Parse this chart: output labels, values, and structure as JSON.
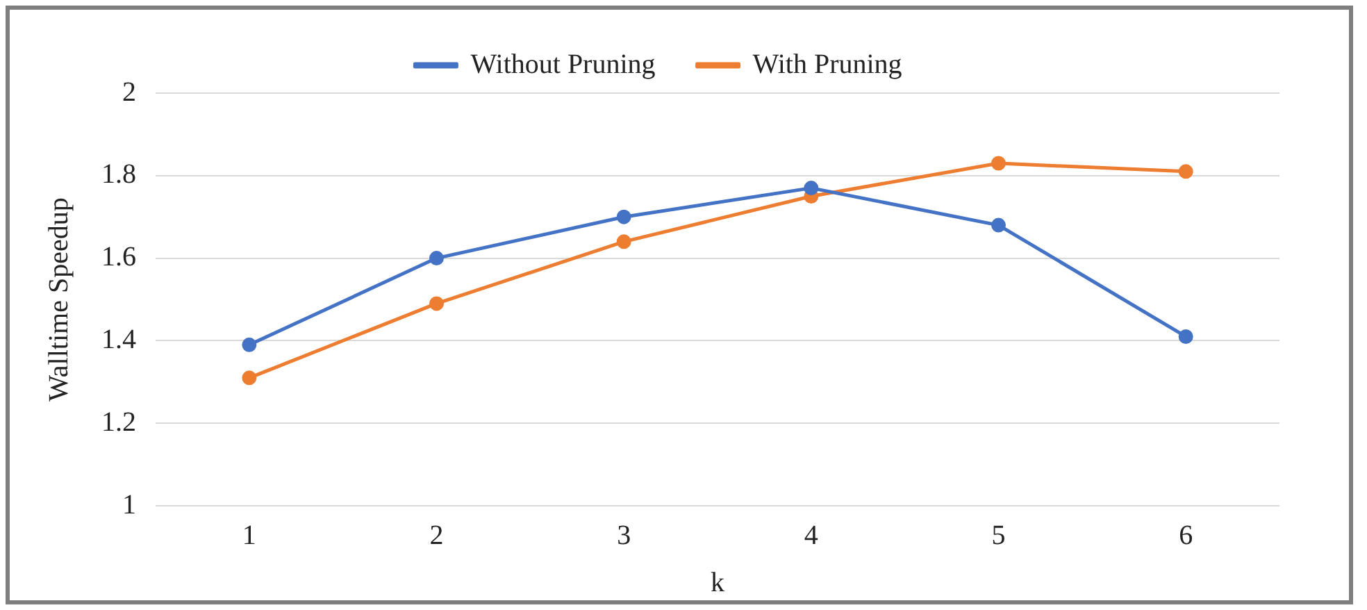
{
  "chart_data": {
    "type": "line",
    "xlabel": "k",
    "ylabel": "Walltime Speedup",
    "categories": [
      "1",
      "2",
      "3",
      "4",
      "5",
      "6"
    ],
    "series": [
      {
        "name": "Without Pruning",
        "color": "#4472c4",
        "values": [
          1.39,
          1.6,
          1.7,
          1.77,
          1.68,
          1.41
        ]
      },
      {
        "name": "With Pruning",
        "color": "#ed7d31",
        "values": [
          1.31,
          1.49,
          1.64,
          1.75,
          1.83,
          1.81
        ]
      }
    ],
    "ylim": [
      1,
      2
    ],
    "yticks": [
      1,
      1.2,
      1.4,
      1.6,
      1.8,
      2
    ],
    "grid": "y",
    "legend": "top",
    "marker": "circle",
    "line_style": "solid"
  }
}
